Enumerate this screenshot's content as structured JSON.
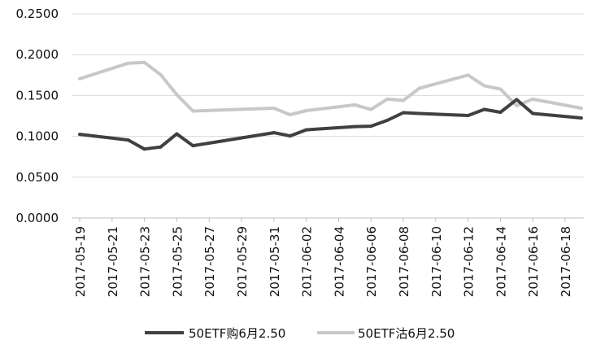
{
  "chart_data": {
    "type": "line",
    "title": "",
    "xlabel": "",
    "ylabel": "",
    "ylim": [
      0,
      0.25
    ],
    "yticks": [
      "0.0000",
      "0.0500",
      "0.1000",
      "0.1500",
      "0.2000",
      "0.2500"
    ],
    "grid": "horizontal",
    "legend_position": "bottom",
    "x": [
      "2017-05-19",
      "2017-05-22",
      "2017-05-23",
      "2017-05-24",
      "2017-05-25",
      "2017-05-26",
      "2017-05-31",
      "2017-06-01",
      "2017-06-02",
      "2017-06-05",
      "2017-06-06",
      "2017-06-07",
      "2017-06-08",
      "2017-06-09",
      "2017-06-12",
      "2017-06-13",
      "2017-06-14",
      "2017-06-15",
      "2017-06-16",
      "2017-06-19"
    ],
    "xticks": [
      "2017-05-19",
      "2017-05-21",
      "2017-05-23",
      "2017-05-25",
      "2017-05-27",
      "2017-05-29",
      "2017-05-31",
      "2017-06-02",
      "2017-06-04",
      "2017-06-06",
      "2017-06-08",
      "2017-06-10",
      "2017-06-12",
      "2017-06-14",
      "2017-06-16",
      "2017-06-18"
    ],
    "series": [
      {
        "name": "50ETF购6月2.50",
        "color": "#404040",
        "values": [
          0.1025,
          0.0955,
          0.0845,
          0.087,
          0.103,
          0.0885,
          0.1045,
          0.1005,
          0.108,
          0.112,
          0.1125,
          0.1195,
          0.129,
          0.128,
          0.1255,
          0.133,
          0.1295,
          0.145,
          0.128,
          0.1225
        ]
      },
      {
        "name": "50ETF沽6月2.50",
        "color": "#c8c8c8",
        "values": [
          0.1705,
          0.1895,
          0.1905,
          0.1755,
          0.151,
          0.131,
          0.1345,
          0.1265,
          0.1315,
          0.1385,
          0.133,
          0.1455,
          0.144,
          0.159,
          0.175,
          0.162,
          0.158,
          0.1375,
          0.1455,
          0.1345
        ]
      }
    ]
  }
}
